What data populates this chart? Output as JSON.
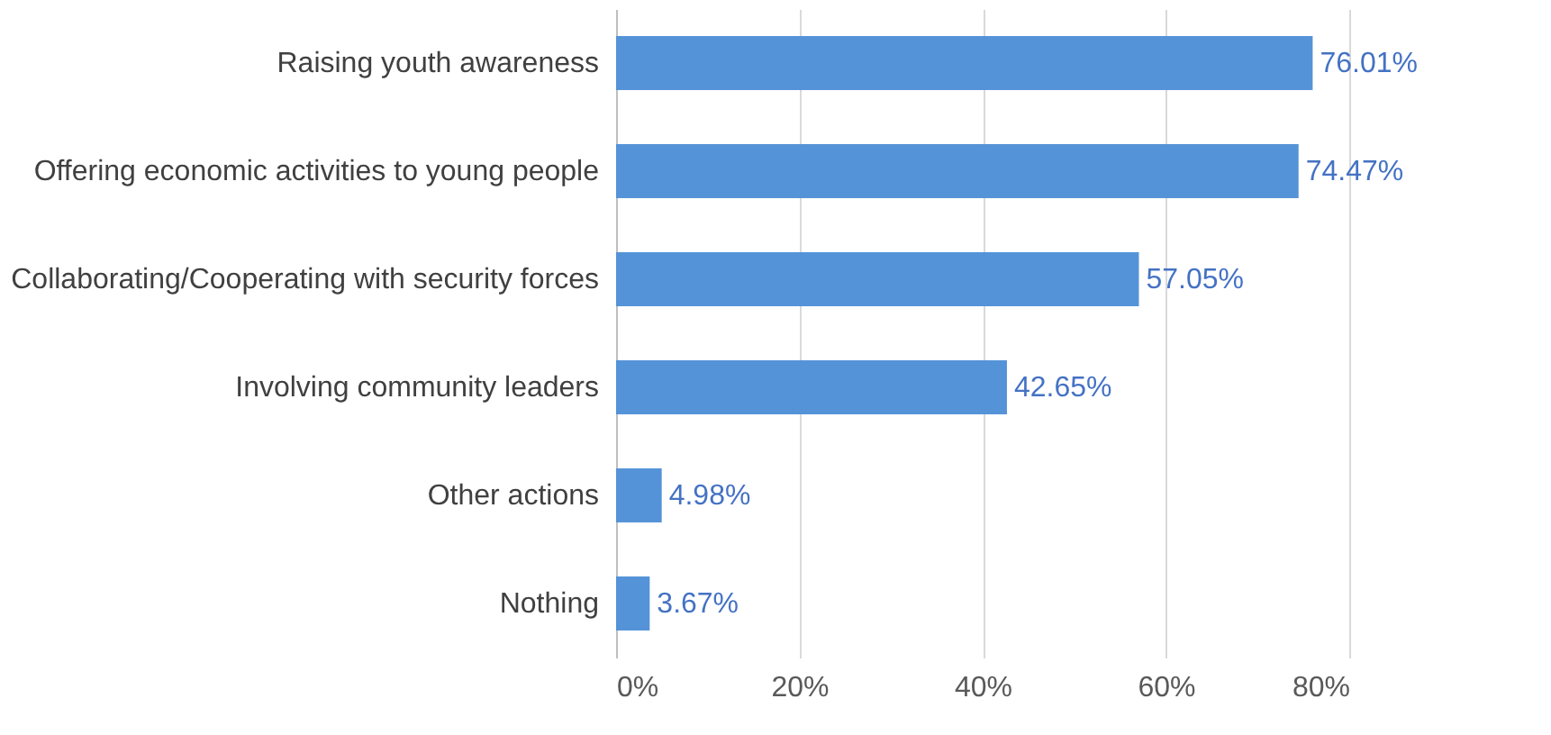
{
  "chart_data": {
    "type": "bar",
    "orientation": "horizontal",
    "categories": [
      "Raising youth awareness",
      "Offering economic activities to young people",
      "Collaborating/Cooperating with security forces",
      "Involving community leaders",
      "Other actions",
      "Nothing"
    ],
    "values": [
      76.01,
      74.47,
      57.05,
      42.65,
      4.98,
      3.67
    ],
    "value_labels": [
      "76.01%",
      "74.47%",
      "57.05%",
      "42.65%",
      "4.98%",
      "3.67%"
    ],
    "color": "#5593d8",
    "xlim": [
      0,
      80
    ],
    "xticks": [
      {
        "value": 0,
        "label": "0%"
      },
      {
        "value": 20,
        "label": "20%"
      },
      {
        "value": 40,
        "label": "40%"
      },
      {
        "value": 60,
        "label": "60%"
      },
      {
        "value": 80,
        "label": "80%"
      }
    ],
    "grid": "x"
  }
}
